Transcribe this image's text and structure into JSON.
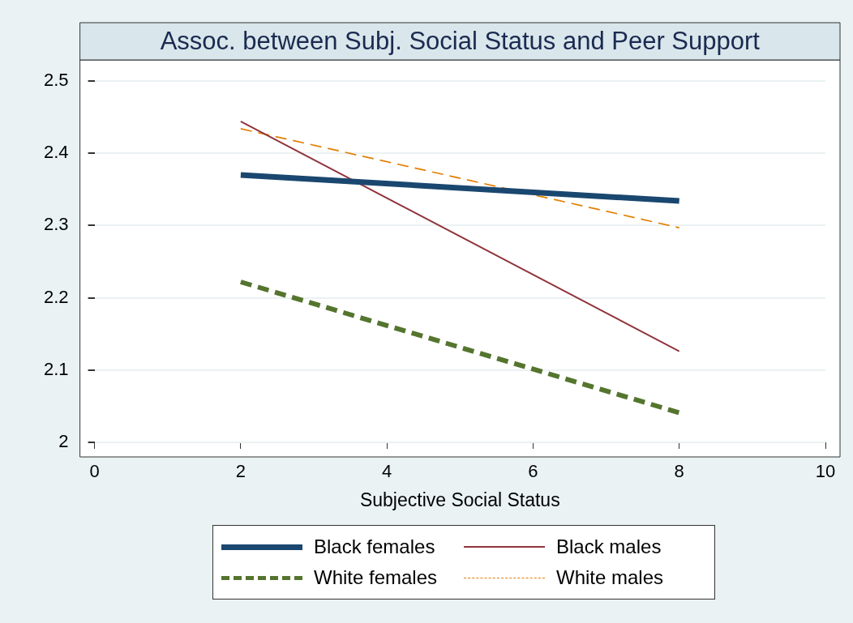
{
  "chart_data": {
    "type": "line",
    "title": "Assoc. between Subj. Social Status and Peer Support",
    "xlabel": "Subjective Social Status",
    "x": [
      2,
      8
    ],
    "series": [
      {
        "name": "Black females",
        "color": "#1a476f",
        "values": [
          2.37,
          2.334
        ],
        "line_style": "solid"
      },
      {
        "name": "Black males",
        "color": "#90353b",
        "values": [
          2.444,
          2.126
        ],
        "line_style": "solid"
      },
      {
        "name": "White females",
        "color": "#55752f",
        "values": [
          2.222,
          2.041
        ],
        "line_style": "dashed"
      },
      {
        "name": "White males",
        "color": "#e37e00",
        "values": [
          2.434,
          2.297
        ],
        "line_style": "dashed"
      }
    ],
    "xlim": [
      0,
      10
    ],
    "xticks": [
      0,
      2,
      4,
      6,
      8,
      10
    ],
    "ylim": [
      2,
      2.5
    ],
    "yticks": [
      2,
      2.1,
      2.2,
      2.3,
      2.4,
      2.5
    ],
    "grid": "y",
    "legend": "bottom",
    "marker": "none"
  }
}
